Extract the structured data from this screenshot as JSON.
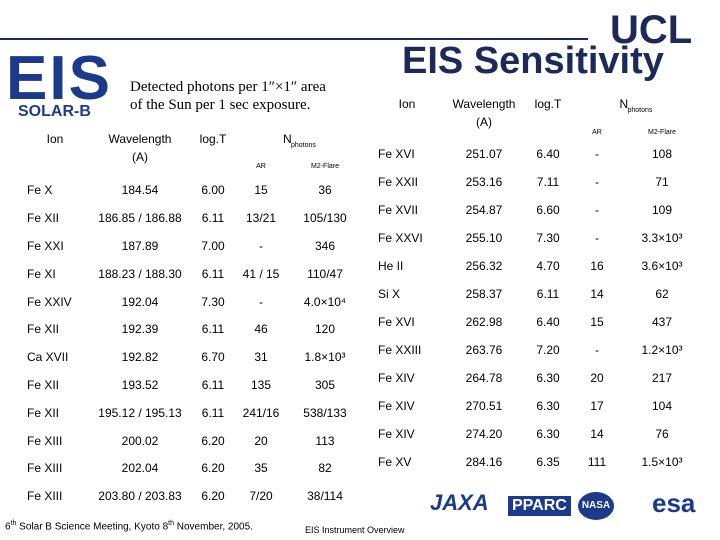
{
  "logos": {
    "ucl": "UCL",
    "eis": "EIS",
    "solar_b": "SOLAR-B",
    "jaxa": "JAXA",
    "pparc": "PPARC",
    "nasa": "NASA",
    "esa": "esa"
  },
  "title": "EIS Sensitivity",
  "caption": [
    "Detected photons per 1″×1″ area",
    "of the Sun per 1 sec exposure."
  ],
  "tables": [
    {
      "header": {
        "ion": "Ion",
        "wavelength": [
          "Wavelength",
          "(A)"
        ],
        "logT": "log.T",
        "nphotons": {
          "N": "N",
          "sub": "photons"
        },
        "ar": "AR",
        "m2": "M2-Flare"
      },
      "rows": [
        [
          "Fe X",
          "184.54",
          "6.00",
          "15",
          "36"
        ],
        [
          "Fe XII",
          "186.85 / 186.88",
          "6.11",
          "13/21",
          "105/130"
        ],
        [
          "Fe XXI",
          "187.89",
          "7.00",
          "-",
          "346"
        ],
        [
          "Fe XI",
          "188.23 / 188.30",
          "6.11",
          "41 / 15",
          "110/47"
        ],
        [
          "Fe XXIV",
          "192.04",
          "7.30",
          "-",
          "4.0×10⁴"
        ],
        [
          "Fe XII",
          "192.39",
          "6.11",
          "46",
          "120"
        ],
        [
          "Ca XVII",
          "192.82",
          "6.70",
          "31",
          "1.8×10³"
        ],
        [
          "Fe XII",
          "193.52",
          "6.11",
          "135",
          "305"
        ],
        [
          "Fe XII",
          "195.12 / 195.13",
          "6.11",
          "241/16",
          "538/133"
        ],
        [
          "Fe XIII",
          "200.02",
          "6.20",
          "20",
          "113"
        ],
        [
          "Fe XIII",
          "202.04",
          "6.20",
          "35",
          "82"
        ],
        [
          "Fe XIII",
          "203.80 / 203.83",
          "6.20",
          "7/20",
          "38/114"
        ]
      ]
    },
    {
      "header": {
        "ion": "Ion",
        "wavelength": [
          "Wavelength",
          "(A)"
        ],
        "logT": "log.T",
        "nphotons": {
          "N": "N",
          "sub": "photons"
        },
        "ar": "AR",
        "m2": "M2-Flare"
      },
      "rows": [
        [
          "Fe XVI",
          "251.07",
          "6.40",
          "-",
          "108"
        ],
        [
          "Fe XXII",
          "253.16",
          "7.11",
          "-",
          "71"
        ],
        [
          "Fe XVII",
          "254.87",
          "6.60",
          "-",
          "109"
        ],
        [
          "Fe XXVI",
          "255.10",
          "7.30",
          "-",
          "3.3×10³"
        ],
        [
          "He II",
          "256.32",
          "4.70",
          "16",
          "3.6×10³"
        ],
        [
          "Si X",
          "258.37",
          "6.11",
          "14",
          "62"
        ],
        [
          "Fe XVI",
          "262.98",
          "6.40",
          "15",
          "437"
        ],
        [
          "Fe XXIII",
          "263.76",
          "7.20",
          "-",
          "1.2×10³"
        ],
        [
          "Fe XIV",
          "264.78",
          "6.30",
          "20",
          "217"
        ],
        [
          "Fe XIV",
          "270.51",
          "6.30",
          "17",
          "104"
        ],
        [
          "Fe XIV",
          "274.20",
          "6.30",
          "14",
          "76"
        ],
        [
          "Fe XV",
          "284.16",
          "6.35",
          "111",
          "1.5×10³"
        ]
      ]
    }
  ],
  "footer": {
    "meeting": [
      "6",
      "th",
      " Solar B Science Meeting, Kyoto 8",
      "th",
      " November, 2005."
    ],
    "overview": "EIS Instrument Overview"
  }
}
